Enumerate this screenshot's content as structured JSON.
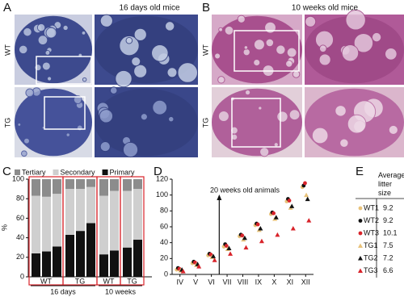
{
  "panels": {
    "a": {
      "label": "A",
      "title": "16 days old mice",
      "rows": [
        "WT",
        "TG"
      ]
    },
    "b": {
      "label": "B",
      "title": "10 weeks old mice",
      "rows": [
        "WT",
        "TG"
      ]
    }
  },
  "chart_data": [
    {
      "type": "bar",
      "label": "C",
      "ylabel": "%",
      "categories": [
        null,
        null,
        null,
        null,
        null,
        null,
        null,
        null,
        null,
        null
      ],
      "groups": [
        "WT",
        "TG",
        "WT",
        "TG"
      ],
      "periods": [
        "16 days",
        "10 weeks"
      ],
      "series": [
        {
          "name": "Tertiary",
          "color": "#8c8c8c",
          "values": [
            17,
            18,
            15,
            10,
            10,
            8,
            17,
            12,
            12,
            10
          ]
        },
        {
          "name": "Secondary",
          "color": "#cfcfcf",
          "values": [
            59,
            56,
            54,
            47,
            43,
            37,
            60,
            61,
            58,
            52
          ]
        },
        {
          "name": "Primary",
          "color": "#111111",
          "values": [
            24,
            26,
            31,
            43,
            47,
            55,
            23,
            27,
            30,
            38
          ]
        }
      ],
      "ylim": [
        0,
        100
      ],
      "yticks": [
        0,
        20,
        40,
        60,
        80,
        100
      ],
      "box_color": "#d8232a"
    },
    {
      "type": "scatter",
      "label": "D",
      "annotation": "20 weeks old animals",
      "x": [
        4,
        5,
        6,
        7,
        8,
        9,
        10,
        11,
        12
      ],
      "xlim": [
        3.5,
        12.5
      ],
      "xticks": [
        {
          "value": 4,
          "label": "IV"
        },
        {
          "value": 5,
          "label": "V"
        },
        {
          "value": 6,
          "label": "VI"
        },
        {
          "value": 7,
          "label": "VII"
        },
        {
          "value": 8,
          "label": "VIII"
        },
        {
          "value": 9,
          "label": "IX"
        },
        {
          "value": 10,
          "label": "X"
        },
        {
          "value": 11,
          "label": "XI"
        },
        {
          "value": 12,
          "label": "XII"
        }
      ],
      "ylim": [
        0,
        120
      ],
      "yticks": [
        0,
        20,
        40,
        60,
        80,
        100,
        120
      ],
      "series": [
        {
          "color": "#e8c27a",
          "marker": "circle",
          "values": [
            6,
            14,
            24,
            35,
            48,
            62,
            76,
            92,
            110
          ]
        },
        {
          "color": "#111111",
          "marker": "circle",
          "values": [
            8,
            16,
            26,
            38,
            50,
            64,
            78,
            95,
            112
          ]
        },
        {
          "color": "#d8232a",
          "marker": "circle",
          "values": [
            7,
            15,
            25,
            36,
            49,
            63,
            77,
            93,
            115
          ]
        },
        {
          "color": "#e8c27a",
          "marker": "triangle",
          "values": [
            5,
            12,
            22,
            32,
            44,
            56,
            70,
            84,
            100
          ]
        },
        {
          "color": "#111111",
          "marker": "triangle",
          "values": [
            6,
            13,
            23,
            33,
            46,
            58,
            72,
            86,
            95
          ]
        },
        {
          "color": "#d8232a",
          "marker": "triangle",
          "values": [
            4,
            10,
            18,
            26,
            34,
            42,
            50,
            58,
            68
          ]
        }
      ]
    }
  ],
  "table": {
    "label": "E",
    "header": "Average litter size",
    "rows": [
      [
        "WT1",
        "9.2"
      ],
      [
        "WT2",
        "9.2"
      ],
      [
        "WT3",
        "10.1"
      ],
      [
        "TG1",
        "7.5"
      ],
      [
        "TG2",
        "7.2"
      ],
      [
        "TG3",
        "6.6"
      ]
    ]
  }
}
